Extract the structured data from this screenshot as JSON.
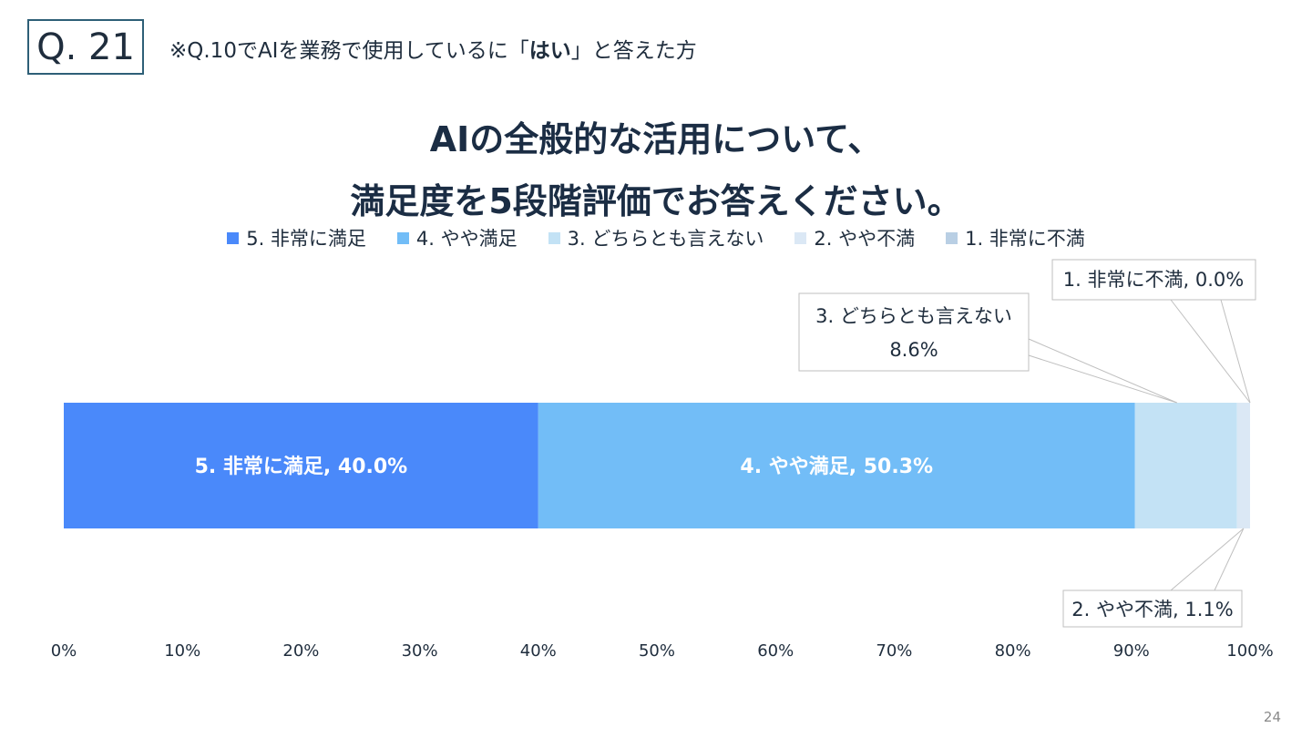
{
  "header": {
    "question_number": "Q. 21",
    "subtitle_pre": "※Q.10でAIを業務で使用しているに「",
    "subtitle_bold": "はい",
    "subtitle_post": "」と答えた方"
  },
  "page_number": "24",
  "chart_data": {
    "type": "bar",
    "orientation": "horizontal",
    "stacked": true,
    "normalized": "100%",
    "title_lines": [
      "AIの全般的な活用について、",
      "満足度を5段階評価でお答えください。"
    ],
    "legend_position": "top",
    "xlim": [
      0,
      100
    ],
    "x_ticks": [
      "0%",
      "10%",
      "20%",
      "30%",
      "40%",
      "50%",
      "60%",
      "70%",
      "80%",
      "90%",
      "100%"
    ],
    "grid": false,
    "series": [
      {
        "name": "5. 非常に満足",
        "value": 40.0,
        "color": "#4a89fa",
        "label": "5. 非常に満足, 40.0%",
        "label_style": "inside"
      },
      {
        "name": "4. やや満足",
        "value": 50.3,
        "color": "#72bdf7",
        "label": "4. やや満足, 50.3%",
        "label_style": "inside"
      },
      {
        "name": "3. どちらとも言えない",
        "value": 8.6,
        "color": "#c3e2f5",
        "label_lines": [
          "3. どちらとも言えない",
          "8.6%"
        ],
        "label_style": "callout"
      },
      {
        "name": "2. やや不満",
        "value": 1.1,
        "color": "#dbe8f5",
        "label": "2. やや不満, 1.1%",
        "label_style": "callout"
      },
      {
        "name": "1. 非常に不満",
        "value": 0.0,
        "color": "#b9cfe4",
        "label": "1. 非常に不満, 0.0%",
        "label_style": "callout"
      }
    ]
  }
}
